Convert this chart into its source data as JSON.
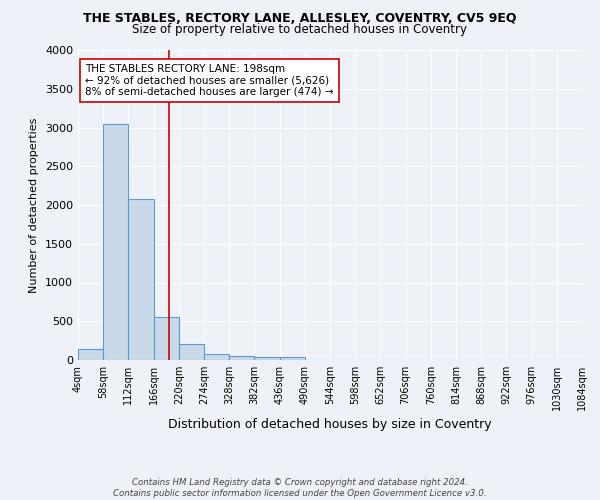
{
  "title": "THE STABLES, RECTORY LANE, ALLESLEY, COVENTRY, CV5 9EQ",
  "subtitle": "Size of property relative to detached houses in Coventry",
  "xlabel": "Distribution of detached houses by size in Coventry",
  "ylabel": "Number of detached properties",
  "footnote": "Contains HM Land Registry data © Crown copyright and database right 2024.\nContains public sector information licensed under the Open Government Licence v3.0.",
  "bin_labels": [
    "4sqm",
    "58sqm",
    "112sqm",
    "166sqm",
    "220sqm",
    "274sqm",
    "328sqm",
    "382sqm",
    "436sqm",
    "490sqm",
    "544sqm",
    "598sqm",
    "652sqm",
    "706sqm",
    "760sqm",
    "814sqm",
    "868sqm",
    "922sqm",
    "976sqm",
    "1030sqm",
    "1084sqm"
  ],
  "bar_values": [
    140,
    3050,
    2075,
    550,
    210,
    75,
    55,
    45,
    45,
    0,
    0,
    0,
    0,
    0,
    0,
    0,
    0,
    0,
    0,
    0
  ],
  "bin_edges": [
    4,
    58,
    112,
    166,
    220,
    274,
    328,
    382,
    436,
    490,
    544,
    598,
    652,
    706,
    760,
    814,
    868,
    922,
    976,
    1030,
    1084
  ],
  "property_size": 198,
  "red_line_x": 198,
  "annotation_text": "THE STABLES RECTORY LANE: 198sqm\n← 92% of detached houses are smaller (5,626)\n8% of semi-detached houses are larger (474) →",
  "bar_color": "#c9d9e8",
  "bar_edge_color": "#5a9bd4",
  "red_line_color": "#cc0000",
  "background_color": "#eef2f8",
  "grid_color": "#ffffff",
  "ylim": [
    0,
    4000
  ],
  "yticks": [
    0,
    500,
    1000,
    1500,
    2000,
    2500,
    3000,
    3500,
    4000
  ]
}
